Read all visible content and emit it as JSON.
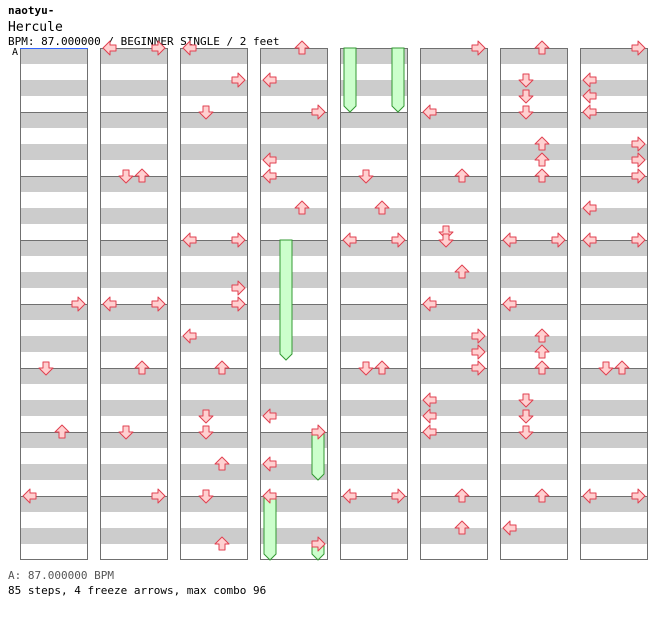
{
  "header": {
    "artist": "naotyu-",
    "title": "Hercule",
    "info": "BPM: 87.000000 / BEGINNER SINGLE / 2 feet",
    "marker": "A"
  },
  "footer": {
    "bpm_note": "A: 87.000000 BPM",
    "stats": "85 steps, 4 freeze arrows, max combo 96"
  },
  "colors": {
    "stripe": "#cccccc",
    "line": "#707070",
    "arrow_fill": "#ffd0d0",
    "arrow_stroke": "#e04050",
    "freeze_fill": "#ccffcc",
    "freeze_stroke": "#339933",
    "marker_line": "#3366ff"
  },
  "chart_data": {
    "type": "step-chart",
    "lanes": [
      "left",
      "down",
      "up",
      "right"
    ],
    "measures_per_column": 8,
    "column_count": 8,
    "note_grid": "8th",
    "notes": [
      {
        "c": 1,
        "m": 0,
        "b": 0,
        "dir": "left"
      },
      {
        "c": 1,
        "m": 0,
        "b": 0,
        "dir": "right"
      },
      {
        "c": 1,
        "m": 2,
        "b": 0,
        "dir": "down"
      },
      {
        "c": 1,
        "m": 2,
        "b": 0,
        "dir": "up"
      },
      {
        "c": 1,
        "m": 4,
        "b": 0,
        "dir": "left"
      },
      {
        "c": 1,
        "m": 4,
        "b": 0,
        "dir": "right"
      },
      {
        "c": 1,
        "m": 5,
        "b": 0,
        "dir": "up"
      },
      {
        "c": 1,
        "m": 6,
        "b": 0,
        "dir": "down"
      },
      {
        "c": 1,
        "m": 7,
        "b": 0,
        "dir": "right"
      },
      {
        "c": 0,
        "m": 4,
        "b": 0,
        "dir": "right"
      },
      {
        "c": 0,
        "m": 5,
        "b": 0,
        "dir": "down"
      },
      {
        "c": 0,
        "m": 6,
        "b": 0,
        "dir": "up"
      },
      {
        "c": 0,
        "m": 7,
        "b": 0,
        "dir": "left"
      },
      {
        "c": 2,
        "m": 0,
        "b": 0,
        "dir": "left"
      },
      {
        "c": 2,
        "m": 0,
        "b": 4,
        "dir": "right"
      },
      {
        "c": 2,
        "m": 1,
        "b": 0,
        "dir": "down"
      },
      {
        "c": 2,
        "m": 3,
        "b": 0,
        "dir": "left"
      },
      {
        "c": 2,
        "m": 3,
        "b": 0,
        "dir": "right"
      },
      {
        "c": 2,
        "m": 3,
        "b": 6,
        "dir": "right"
      },
      {
        "c": 2,
        "m": 4,
        "b": 0,
        "dir": "right"
      },
      {
        "c": 2,
        "m": 4,
        "b": 4,
        "dir": "left"
      },
      {
        "c": 2,
        "m": 5,
        "b": 0,
        "dir": "up"
      },
      {
        "c": 2,
        "m": 5,
        "b": 6,
        "dir": "down"
      },
      {
        "c": 2,
        "m": 6,
        "b": 0,
        "dir": "down"
      },
      {
        "c": 2,
        "m": 6,
        "b": 4,
        "dir": "up"
      },
      {
        "c": 2,
        "m": 7,
        "b": 0,
        "dir": "down"
      },
      {
        "c": 2,
        "m": 7,
        "b": 6,
        "dir": "up"
      },
      {
        "c": 3,
        "m": 0,
        "b": 0,
        "dir": "up"
      },
      {
        "c": 3,
        "m": 0,
        "b": 4,
        "dir": "left"
      },
      {
        "c": 3,
        "m": 1,
        "b": 0,
        "dir": "right"
      },
      {
        "c": 3,
        "m": 1,
        "b": 6,
        "dir": "left"
      },
      {
        "c": 3,
        "m": 2,
        "b": 0,
        "dir": "left"
      },
      {
        "c": 3,
        "m": 2,
        "b": 4,
        "dir": "up"
      },
      {
        "c": 3,
        "m": 5,
        "b": 6,
        "dir": "left"
      },
      {
        "c": 3,
        "m": 6,
        "b": 0,
        "dir": "right"
      },
      {
        "c": 3,
        "m": 6,
        "b": 4,
        "dir": "left"
      },
      {
        "c": 3,
        "m": 7,
        "b": 0,
        "dir": "left"
      },
      {
        "c": 3,
        "m": 7,
        "b": 6,
        "dir": "right"
      },
      {
        "c": 4,
        "m": 2,
        "b": 0,
        "dir": "down"
      },
      {
        "c": 4,
        "m": 2,
        "b": 4,
        "dir": "up"
      },
      {
        "c": 4,
        "m": 3,
        "b": 0,
        "dir": "left"
      },
      {
        "c": 4,
        "m": 3,
        "b": 0,
        "dir": "right"
      },
      {
        "c": 4,
        "m": 5,
        "b": 0,
        "dir": "down"
      },
      {
        "c": 4,
        "m": 5,
        "b": 0,
        "dir": "up"
      },
      {
        "c": 4,
        "m": 7,
        "b": 0,
        "dir": "left"
      },
      {
        "c": 4,
        "m": 7,
        "b": 0,
        "dir": "right"
      },
      {
        "c": 5,
        "m": 0,
        "b": 0,
        "dir": "right"
      },
      {
        "c": 5,
        "m": 1,
        "b": 0,
        "dir": "left"
      },
      {
        "c": 5,
        "m": 2,
        "b": 0,
        "dir": "up"
      },
      {
        "c": 5,
        "m": 2,
        "b": 7,
        "dir": "down"
      },
      {
        "c": 5,
        "m": 3,
        "b": 0,
        "dir": "down"
      },
      {
        "c": 5,
        "m": 3,
        "b": 4,
        "dir": "up"
      },
      {
        "c": 5,
        "m": 4,
        "b": 0,
        "dir": "left"
      },
      {
        "c": 5,
        "m": 4,
        "b": 4,
        "dir": "right"
      },
      {
        "c": 5,
        "m": 4,
        "b": 6,
        "dir": "right"
      },
      {
        "c": 5,
        "m": 5,
        "b": 0,
        "dir": "right"
      },
      {
        "c": 5,
        "m": 5,
        "b": 4,
        "dir": "left"
      },
      {
        "c": 5,
        "m": 5,
        "b": 6,
        "dir": "left"
      },
      {
        "c": 5,
        "m": 6,
        "b": 0,
        "dir": "left"
      },
      {
        "c": 5,
        "m": 7,
        "b": 0,
        "dir": "up"
      },
      {
        "c": 5,
        "m": 7,
        "b": 4,
        "dir": "up"
      },
      {
        "c": 6,
        "m": 0,
        "b": 0,
        "dir": "up"
      },
      {
        "c": 6,
        "m": 0,
        "b": 4,
        "dir": "down"
      },
      {
        "c": 6,
        "m": 0,
        "b": 6,
        "dir": "down"
      },
      {
        "c": 6,
        "m": 1,
        "b": 0,
        "dir": "down"
      },
      {
        "c": 6,
        "m": 1,
        "b": 4,
        "dir": "up"
      },
      {
        "c": 6,
        "m": 1,
        "b": 6,
        "dir": "up"
      },
      {
        "c": 6,
        "m": 2,
        "b": 0,
        "dir": "up"
      },
      {
        "c": 6,
        "m": 3,
        "b": 0,
        "dir": "left"
      },
      {
        "c": 6,
        "m": 3,
        "b": 0,
        "dir": "right"
      },
      {
        "c": 6,
        "m": 4,
        "b": 0,
        "dir": "left"
      },
      {
        "c": 6,
        "m": 4,
        "b": 4,
        "dir": "up"
      },
      {
        "c": 6,
        "m": 4,
        "b": 6,
        "dir": "up"
      },
      {
        "c": 6,
        "m": 5,
        "b": 0,
        "dir": "up"
      },
      {
        "c": 6,
        "m": 5,
        "b": 4,
        "dir": "down"
      },
      {
        "c": 6,
        "m": 5,
        "b": 6,
        "dir": "down"
      },
      {
        "c": 6,
        "m": 6,
        "b": 0,
        "dir": "down"
      },
      {
        "c": 6,
        "m": 7,
        "b": 0,
        "dir": "up"
      },
      {
        "c": 6,
        "m": 7,
        "b": 4,
        "dir": "left"
      },
      {
        "c": 7,
        "m": 0,
        "b": 0,
        "dir": "right"
      },
      {
        "c": 7,
        "m": 0,
        "b": 4,
        "dir": "left"
      },
      {
        "c": 7,
        "m": 0,
        "b": 6,
        "dir": "left"
      },
      {
        "c": 7,
        "m": 1,
        "b": 0,
        "dir": "left"
      },
      {
        "c": 7,
        "m": 1,
        "b": 4,
        "dir": "right"
      },
      {
        "c": 7,
        "m": 1,
        "b": 6,
        "dir": "right"
      },
      {
        "c": 7,
        "m": 2,
        "b": 0,
        "dir": "right"
      },
      {
        "c": 7,
        "m": 2,
        "b": 4,
        "dir": "left"
      },
      {
        "c": 7,
        "m": 3,
        "b": 0,
        "dir": "left"
      },
      {
        "c": 7,
        "m": 3,
        "b": 0,
        "dir": "right"
      },
      {
        "c": 7,
        "m": 5,
        "b": 0,
        "dir": "down"
      },
      {
        "c": 7,
        "m": 5,
        "b": 0,
        "dir": "up"
      },
      {
        "c": 7,
        "m": 7,
        "b": 0,
        "dir": "left"
      },
      {
        "c": 7,
        "m": 7,
        "b": 0,
        "dir": "right"
      }
    ],
    "freezes": [
      {
        "c": 3,
        "lane": "down",
        "m": 3,
        "b": 0,
        "length_beats": 15
      },
      {
        "c": 3,
        "lane": "right",
        "m": 6,
        "b": 0,
        "length_beats": 6
      },
      {
        "c": 3,
        "lane": "left",
        "m": 7,
        "b": 0,
        "length_beats": 8
      },
      {
        "c": 3,
        "lane": "right",
        "m": 7,
        "b": 6,
        "length_beats": 2
      },
      {
        "c": 4,
        "lane": "left",
        "m": 0,
        "b": 0,
        "length_beats": 8
      },
      {
        "c": 4,
        "lane": "right",
        "m": 0,
        "b": 0,
        "length_beats": 8
      }
    ]
  }
}
